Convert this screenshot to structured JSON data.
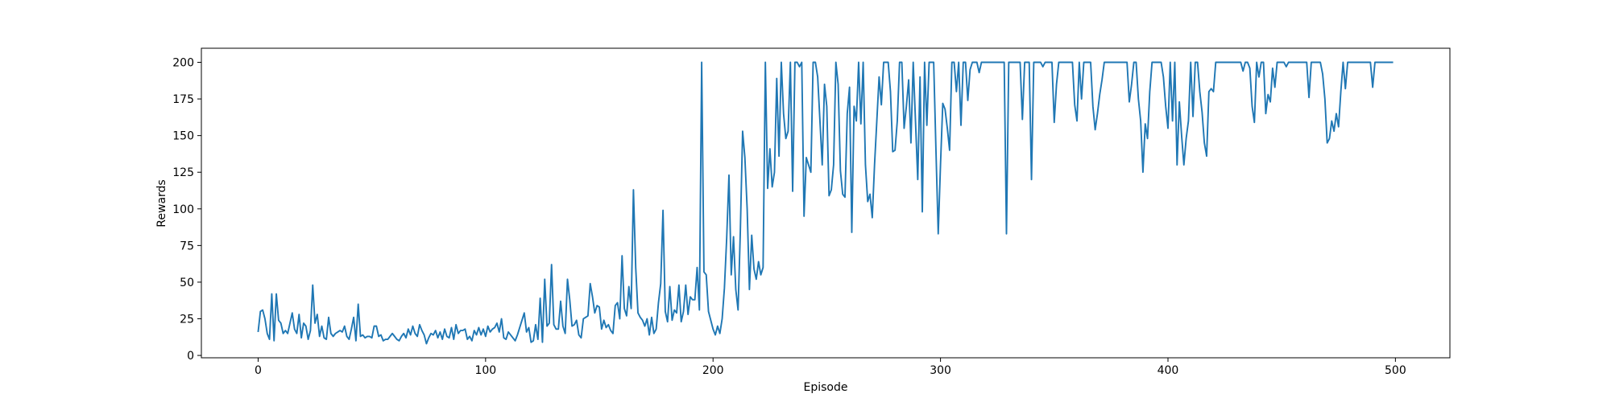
{
  "chart_data": {
    "type": "line",
    "x_label": "Episode",
    "y_label": "Rewards",
    "xlim": [
      -24.95,
      523.95
    ],
    "xticks": [
      0,
      100,
      200,
      300,
      400,
      500
    ],
    "ylim": [
      -1.6,
      209.6
    ],
    "yticks": [
      0,
      25,
      50,
      75,
      100,
      125,
      150,
      175,
      200
    ],
    "x": [
      0,
      1,
      2,
      3,
      4,
      5,
      6,
      7,
      8,
      9,
      10,
      11,
      12,
      13,
      14,
      15,
      16,
      17,
      18,
      19,
      20,
      21,
      22,
      23,
      24,
      25,
      26,
      27,
      28,
      29,
      30,
      31,
      32,
      33,
      34,
      35,
      36,
      37,
      38,
      39,
      40,
      41,
      42,
      43,
      44,
      45,
      46,
      47,
      48,
      49,
      50,
      51,
      52,
      53,
      54,
      55,
      56,
      57,
      58,
      59,
      60,
      61,
      62,
      63,
      64,
      65,
      66,
      67,
      68,
      69,
      70,
      71,
      72,
      73,
      74,
      75,
      76,
      77,
      78,
      79,
      80,
      81,
      82,
      83,
      84,
      85,
      86,
      87,
      88,
      89,
      90,
      91,
      92,
      93,
      94,
      95,
      96,
      97,
      98,
      99,
      100,
      101,
      102,
      103,
      104,
      105,
      106,
      107,
      108,
      109,
      110,
      111,
      112,
      113,
      114,
      115,
      116,
      117,
      118,
      119,
      120,
      121,
      122,
      123,
      124,
      125,
      126,
      127,
      128,
      129,
      130,
      131,
      132,
      133,
      134,
      135,
      136,
      137,
      138,
      139,
      140,
      141,
      142,
      143,
      144,
      145,
      146,
      147,
      148,
      149,
      150,
      151,
      152,
      153,
      154,
      155,
      156,
      157,
      158,
      159,
      160,
      161,
      162,
      163,
      164,
      165,
      166,
      167,
      168,
      169,
      170,
      171,
      172,
      173,
      174,
      175,
      176,
      177,
      178,
      179,
      180,
      181,
      182,
      183,
      184,
      185,
      186,
      187,
      188,
      189,
      190,
      191,
      192,
      193,
      194,
      195,
      196,
      197,
      198,
      199,
      200,
      201,
      202,
      203,
      204,
      205,
      206,
      207,
      208,
      209,
      210,
      211,
      212,
      213,
      214,
      215,
      216,
      217,
      218,
      219,
      220,
      221,
      222,
      223,
      224,
      225,
      226,
      227,
      228,
      229,
      230,
      231,
      232,
      233,
      234,
      235,
      236,
      237,
      238,
      239,
      240,
      241,
      242,
      243,
      244,
      245,
      246,
      247,
      248,
      249,
      250,
      251,
      252,
      253,
      254,
      255,
      256,
      257,
      258,
      259,
      260,
      261,
      262,
      263,
      264,
      265,
      266,
      267,
      268,
      269,
      270,
      271,
      272,
      273,
      274,
      275,
      276,
      277,
      278,
      279,
      280,
      281,
      282,
      283,
      284,
      285,
      286,
      287,
      288,
      289,
      290,
      291,
      292,
      293,
      294,
      295,
      296,
      297,
      298,
      299,
      300,
      301,
      302,
      303,
      304,
      305,
      306,
      307,
      308,
      309,
      310,
      311,
      312,
      313,
      314,
      315,
      316,
      317,
      318,
      319,
      320,
      321,
      322,
      323,
      324,
      325,
      326,
      327,
      328,
      329,
      330,
      331,
      332,
      333,
      334,
      335,
      336,
      337,
      338,
      339,
      340,
      341,
      342,
      343,
      344,
      345,
      346,
      347,
      348,
      349,
      350,
      351,
      352,
      353,
      354,
      355,
      356,
      357,
      358,
      359,
      360,
      361,
      362,
      363,
      364,
      365,
      366,
      367,
      368,
      369,
      370,
      371,
      372,
      373,
      374,
      375,
      376,
      377,
      378,
      379,
      380,
      381,
      382,
      383,
      384,
      385,
      386,
      387,
      388,
      389,
      390,
      391,
      392,
      393,
      394,
      395,
      396,
      397,
      398,
      399,
      400,
      401,
      402,
      403,
      404,
      405,
      406,
      407,
      408,
      409,
      410,
      411,
      412,
      413,
      414,
      415,
      416,
      417,
      418,
      419,
      420,
      421,
      422,
      423,
      424,
      425,
      426,
      427,
      428,
      429,
      430,
      431,
      432,
      433,
      434,
      435,
      436,
      437,
      438,
      439,
      440,
      441,
      442,
      443,
      444,
      445,
      446,
      447,
      448,
      449,
      450,
      451,
      452,
      453,
      454,
      455,
      456,
      457,
      458,
      459,
      460,
      461,
      462,
      463,
      464,
      465,
      466,
      467,
      468,
      469,
      470,
      471,
      472,
      473,
      474,
      475,
      476,
      477,
      478,
      479,
      480,
      481,
      482,
      483,
      484,
      485,
      486,
      487,
      488,
      489,
      490,
      491,
      492,
      493,
      494,
      495,
      496,
      497,
      498,
      499
    ],
    "color": "#1f77b4",
    "values": [
      16,
      30,
      31,
      25,
      15,
      11,
      42,
      10,
      42,
      24,
      22,
      15,
      17,
      15,
      22,
      29,
      18,
      15,
      28,
      12,
      22,
      20,
      11,
      17,
      48,
      22,
      28,
      13,
      20,
      12,
      11,
      26,
      15,
      13,
      15,
      16,
      17,
      16,
      20,
      13,
      11,
      18,
      26,
      10,
      35,
      13,
      14,
      12,
      13,
      13,
      12,
      20,
      20,
      13,
      14,
      10,
      11,
      11,
      13,
      15,
      13,
      11,
      10,
      13,
      15,
      12,
      18,
      14,
      20,
      15,
      13,
      21,
      17,
      14,
      8,
      12,
      15,
      14,
      17,
      12,
      16,
      11,
      18,
      13,
      12,
      19,
      11,
      21,
      15,
      17,
      17,
      18,
      11,
      13,
      10,
      17,
      14,
      19,
      14,
      18,
      13,
      20,
      16,
      18,
      19,
      22,
      16,
      25,
      12,
      11,
      16,
      14,
      12,
      10,
      14,
      19,
      24,
      29,
      16,
      19,
      9,
      10,
      21,
      11,
      39,
      9,
      52,
      20,
      22,
      62,
      21,
      18,
      18,
      37,
      20,
      15,
      52,
      38,
      20,
      21,
      24,
      14,
      12,
      25,
      26,
      27,
      49,
      40,
      29,
      34,
      33,
      18,
      24,
      19,
      21,
      17,
      15,
      34,
      36,
      25,
      68,
      32,
      27,
      47,
      32,
      113,
      60,
      29,
      26,
      24,
      20,
      25,
      14,
      26,
      15,
      18,
      36,
      49,
      99,
      30,
      23,
      47,
      24,
      31,
      29,
      48,
      23,
      30,
      48,
      28,
      40,
      38,
      38,
      60,
      31,
      200,
      57,
      55,
      30,
      24,
      18,
      14,
      20,
      15,
      25,
      46,
      80,
      123,
      55,
      81,
      45,
      31,
      85,
      153,
      135,
      100,
      45,
      82,
      59,
      52,
      64,
      55,
      60,
      200,
      114,
      141,
      115,
      125,
      189,
      136,
      200,
      165,
      148,
      153,
      200,
      112,
      200,
      200,
      197,
      200,
      95,
      135,
      130,
      125,
      200,
      200,
      190,
      160,
      130,
      185,
      170,
      109,
      113,
      130,
      200,
      185,
      126,
      110,
      108,
      165,
      183,
      84,
      170,
      160,
      200,
      158,
      200,
      130,
      105,
      110,
      94,
      130,
      160,
      190,
      171,
      200,
      200,
      200,
      180,
      139,
      140,
      160,
      200,
      200,
      155,
      170,
      188,
      145,
      200,
      160,
      120,
      190,
      98,
      200,
      157,
      200,
      200,
      200,
      140,
      83,
      130,
      172,
      168,
      155,
      140,
      200,
      200,
      180,
      200,
      157,
      200,
      200,
      174,
      195,
      200,
      200,
      200,
      193,
      200,
      200,
      200,
      200,
      200,
      200,
      200,
      200,
      200,
      200,
      200,
      83,
      200,
      200,
      200,
      200,
      200,
      200,
      161,
      200,
      200,
      200,
      120,
      200,
      200,
      200,
      200,
      197,
      200,
      200,
      200,
      200,
      159,
      185,
      200,
      200,
      200,
      200,
      200,
      200,
      200,
      171,
      160,
      200,
      175,
      200,
      200,
      200,
      200,
      170,
      154,
      165,
      178,
      188,
      200,
      200,
      200,
      200,
      200,
      200,
      200,
      200,
      200,
      200,
      200,
      173,
      185,
      200,
      200,
      175,
      160,
      125,
      158,
      148,
      180,
      200,
      200,
      200,
      200,
      200,
      190,
      170,
      155,
      200,
      160,
      200,
      130,
      173,
      150,
      130,
      148,
      160,
      200,
      163,
      200,
      200,
      180,
      166,
      145,
      136,
      180,
      182,
      180,
      200,
      200,
      200,
      200,
      200,
      200,
      200,
      200,
      200,
      200,
      200,
      200,
      194,
      200,
      200,
      196,
      170,
      159,
      200,
      190,
      200,
      200,
      165,
      178,
      173,
      196,
      183,
      200,
      200,
      200,
      200,
      197,
      200,
      200,
      200,
      200,
      200,
      200,
      200,
      200,
      200,
      176,
      200,
      200,
      200,
      200,
      200,
      192,
      175,
      145,
      148,
      160,
      153,
      165,
      156,
      180,
      200,
      182,
      200,
      200,
      200,
      200,
      200,
      200,
      200,
      200,
      200,
      200,
      200,
      183,
      200,
      200,
      200,
      200,
      200,
      200,
      200,
      200,
      200
    ]
  }
}
